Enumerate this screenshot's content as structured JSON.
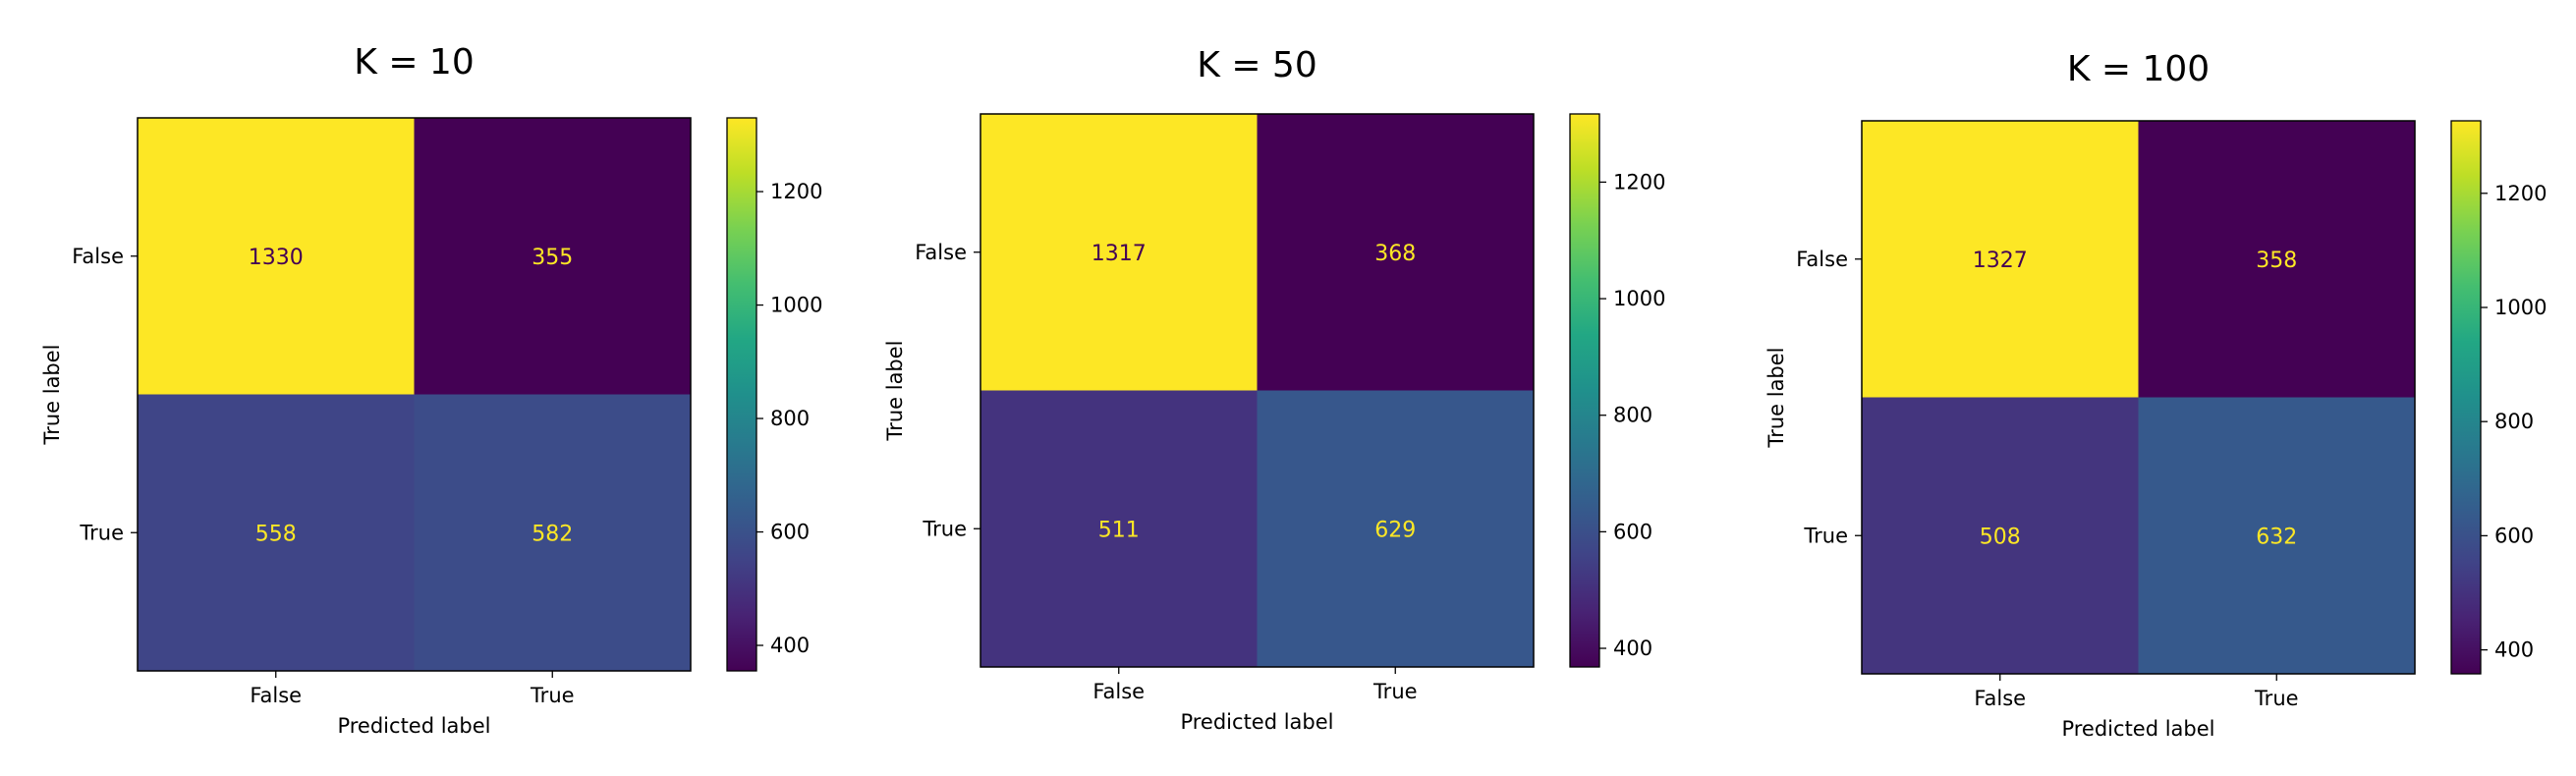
{
  "chart_data": [
    {
      "type": "heatmap",
      "title": "K = 10",
      "xlabel": "Predicted label",
      "ylabel": "True label",
      "x_categories": [
        "False",
        "True"
      ],
      "y_categories": [
        "False",
        "True"
      ],
      "matrix": [
        [
          1330,
          355
        ],
        [
          558,
          582
        ]
      ],
      "colormap": "viridis",
      "color_range": [
        355,
        1330
      ],
      "colorbar_ticks": [
        400,
        600,
        800,
        1000,
        1200
      ]
    },
    {
      "type": "heatmap",
      "title": "K = 50",
      "xlabel": "Predicted label",
      "ylabel": "True label",
      "x_categories": [
        "False",
        "True"
      ],
      "y_categories": [
        "False",
        "True"
      ],
      "matrix": [
        [
          1317,
          368
        ],
        [
          511,
          629
        ]
      ],
      "colormap": "viridis",
      "color_range": [
        368,
        1317
      ],
      "colorbar_ticks": [
        400,
        600,
        800,
        1000,
        1200
      ]
    },
    {
      "type": "heatmap",
      "title": "K = 100",
      "xlabel": "Predicted label",
      "ylabel": "True label",
      "x_categories": [
        "False",
        "True"
      ],
      "y_categories": [
        "False",
        "True"
      ],
      "matrix": [
        [
          1327,
          358
        ],
        [
          508,
          632
        ]
      ],
      "colormap": "viridis",
      "color_range": [
        358,
        1327
      ],
      "colorbar_ticks": [
        400,
        600,
        800,
        1000,
        1200
      ]
    }
  ]
}
